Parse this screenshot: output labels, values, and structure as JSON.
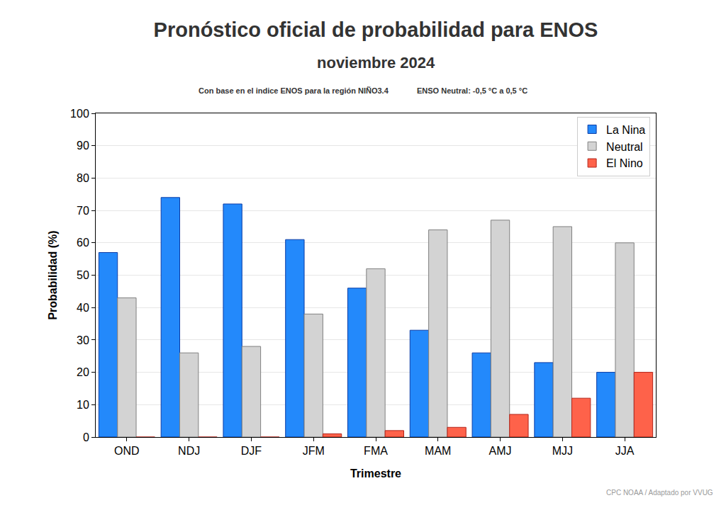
{
  "chart_data": {
    "type": "bar",
    "title": "Pronóstico oficial de probabilidad para ENOS",
    "subtitle": "noviembre 2024",
    "annotations": [
      "Con base en el indice ENOS para la región NIÑO3.4",
      "ENSO Neutral: -0,5 °C a 0,5 °C",
      "CPC NOAA / Adaptado por VVUG"
    ],
    "x_label": "Trimestre",
    "y_label": "Probabilidad (%)",
    "categories": [
      "OND",
      "NDJ",
      "DJF",
      "JFM",
      "FMA",
      "MAM",
      "AMJ",
      "MJJ",
      "JJA"
    ],
    "series": [
      {
        "name": "La Nina",
        "color": "#2389fb",
        "values": [
          57,
          74,
          72,
          61,
          46,
          33,
          26,
          23,
          20
        ]
      },
      {
        "name": "Neutral",
        "color": "#d3d3d3",
        "values": [
          43,
          26,
          28,
          38,
          52,
          64,
          67,
          65,
          60
        ]
      },
      {
        "name": "El Nino",
        "color": "#fe624a",
        "values": [
          0,
          0,
          0,
          1,
          2,
          3,
          7,
          12,
          20
        ]
      }
    ],
    "ylim": [
      0,
      100
    ],
    "yticks": [
      0,
      10,
      20,
      30,
      40,
      50,
      60,
      70,
      80,
      90,
      100
    ],
    "grid": true,
    "legend": "upper right"
  }
}
